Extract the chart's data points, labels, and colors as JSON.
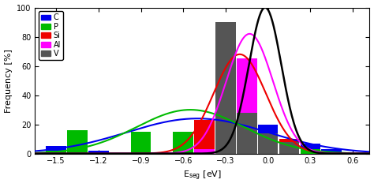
{
  "xlabel": "E$_{\\rm seg}$ [eV]",
  "ylabel": "Frequency [%]",
  "xlim": [
    -1.65,
    0.72
  ],
  "ylim": [
    0,
    100
  ],
  "xticks": [
    -1.5,
    -1.2,
    -0.9,
    -0.6,
    -0.3,
    0.0,
    0.3,
    0.6
  ],
  "yticks": [
    0,
    20,
    40,
    60,
    80,
    100
  ],
  "bin_width": 0.15,
  "bin_centers": [
    -1.5,
    -1.35,
    -1.2,
    -1.05,
    -0.9,
    -0.75,
    -0.6,
    -0.45,
    -0.3,
    -0.15,
    0.0,
    0.15,
    0.3,
    0.45,
    0.6
  ],
  "bar_data": {
    "C": [
      5,
      0,
      2,
      0,
      15,
      0,
      15,
      20,
      35,
      20,
      20,
      7,
      7,
      3,
      0
    ],
    "P": [
      2,
      16,
      0,
      0,
      15,
      0,
      15,
      15,
      25,
      27,
      0,
      3,
      3,
      0,
      0
    ],
    "Si": [
      0,
      0,
      0,
      0,
      0,
      0,
      0,
      23,
      65,
      65,
      13,
      10,
      0,
      0,
      0
    ],
    "Al": [
      0,
      0,
      0,
      0,
      0,
      0,
      0,
      3,
      80,
      65,
      13,
      0,
      0,
      0,
      0
    ],
    "V": [
      0,
      0,
      0,
      0,
      0,
      0,
      0,
      0,
      90,
      28,
      14,
      8,
      0,
      0,
      0
    ]
  },
  "colors": {
    "C": "#0000ee",
    "P": "#00bb00",
    "Si": "#ee0000",
    "Al": "#ff00ff",
    "V": "#555555"
  },
  "draw_order": [
    "C",
    "P",
    "Si",
    "Al",
    "V"
  ],
  "curve_params": {
    "C": {
      "mu": -0.5,
      "sigma": 0.5,
      "peak": 24
    },
    "P": {
      "mu": -0.55,
      "sigma": 0.38,
      "peak": 30
    },
    "Si": {
      "mu": -0.2,
      "sigma": 0.185,
      "peak": 68
    },
    "Al": {
      "mu": -0.13,
      "sigma": 0.165,
      "peak": 82
    },
    "V": {
      "mu": -0.02,
      "sigma": 0.115,
      "peak": 100
    }
  },
  "legend_order": [
    "C",
    "P",
    "Si",
    "Al",
    "V"
  ],
  "figsize": [
    4.74,
    2.37
  ],
  "dpi": 100
}
